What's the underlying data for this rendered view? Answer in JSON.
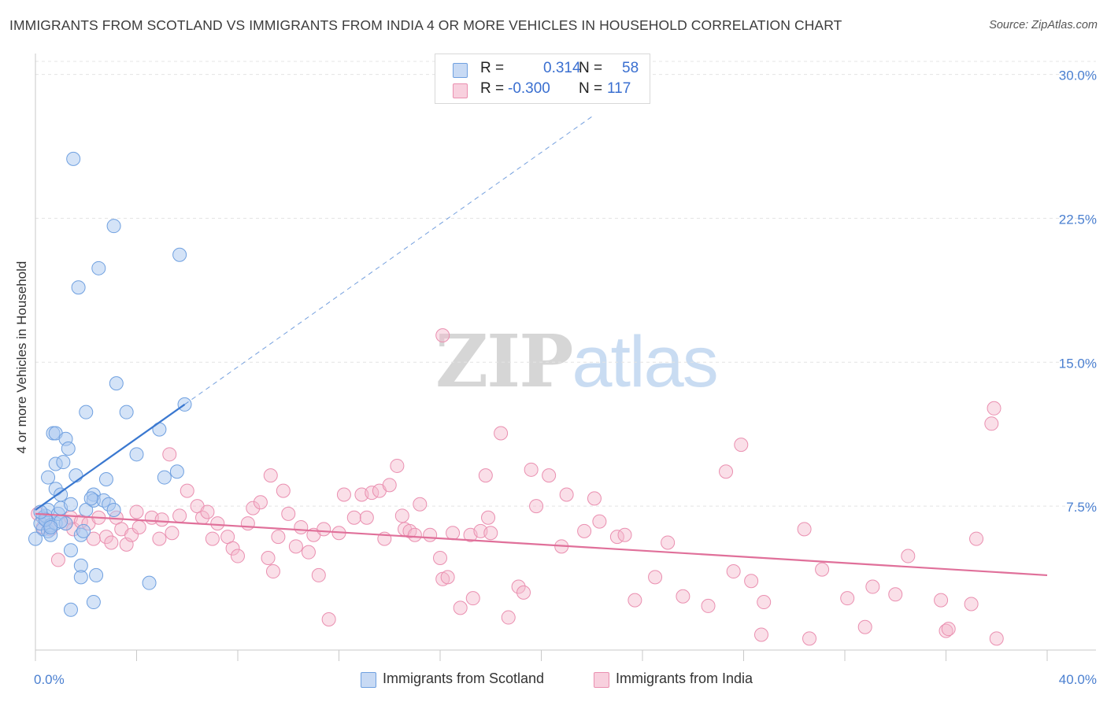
{
  "title": "IMMIGRANTS FROM SCOTLAND VS IMMIGRANTS FROM INDIA 4 OR MORE VEHICLES IN HOUSEHOLD CORRELATION CHART",
  "source": "Source: ZipAtlas.com",
  "watermark": {
    "zip": "ZIP",
    "atlas": "atlas"
  },
  "legend": {
    "rows": [
      {
        "r_label": "R =",
        "r_value": "0.314",
        "n_label": "N =",
        "n_value": "58",
        "color": "#aac8f0"
      },
      {
        "r_label": "R =",
        "r_value": "-0.300",
        "n_label": "N =",
        "n_value": "117",
        "color": "#f4b8cc"
      }
    ]
  },
  "bottom_legend": [
    {
      "label": "Immigrants from Scotland",
      "color": "#aac8f0"
    },
    {
      "label": "Immigrants from India",
      "color": "#f4b8cc"
    }
  ],
  "chart_data": {
    "type": "scatter",
    "ylabel": "4 or more Vehicles in Household",
    "xlabel": "",
    "xlim": [
      0,
      40
    ],
    "ylim": [
      0,
      31.5
    ],
    "x_tick_labels": [
      "0.0%",
      "40.0%"
    ],
    "y_ticks": [
      7.5,
      15.0,
      22.5,
      30.0
    ],
    "y_tick_labels": [
      "7.5%",
      "15.0%",
      "22.5%",
      "30.0%"
    ],
    "grid": true,
    "colors": {
      "scotland_fill": "#aac8f0",
      "scotland_stroke": "#6fa0e0",
      "scotland_line": "#3a78d0",
      "india_fill": "#f4b8cc",
      "india_stroke": "#ea8fb0",
      "india_line": "#e0709a"
    },
    "series": [
      {
        "name": "Immigrants from Scotland",
        "trend": {
          "x": [
            0,
            5.9
          ],
          "y": [
            7.3,
            12.8
          ],
          "dashed_extension_to": [
            22.0,
            27.8
          ]
        },
        "points": [
          [
            0.3,
            6.3
          ],
          [
            0.3,
            6.9
          ],
          [
            0.2,
            6.6
          ],
          [
            0.4,
            7.0
          ],
          [
            0.5,
            6.2
          ],
          [
            0.6,
            6.5
          ],
          [
            0.5,
            7.3
          ],
          [
            0.6,
            6.0
          ],
          [
            0.8,
            6.6
          ],
          [
            0.9,
            7.1
          ],
          [
            0.5,
            9.0
          ],
          [
            0.8,
            8.4
          ],
          [
            0.8,
            9.7
          ],
          [
            0.7,
            11.3
          ],
          [
            0.8,
            11.3
          ],
          [
            1.0,
            8.1
          ],
          [
            1.0,
            7.4
          ],
          [
            1.1,
            9.8
          ],
          [
            1.2,
            11.0
          ],
          [
            1.3,
            10.5
          ],
          [
            1.4,
            7.6
          ],
          [
            1.2,
            6.6
          ],
          [
            1.4,
            5.2
          ],
          [
            1.6,
            9.1
          ],
          [
            1.5,
            25.6
          ],
          [
            1.7,
            18.9
          ],
          [
            1.8,
            6.0
          ],
          [
            1.9,
            6.2
          ],
          [
            1.8,
            4.4
          ],
          [
            1.8,
            3.8
          ],
          [
            2.0,
            12.4
          ],
          [
            2.0,
            7.3
          ],
          [
            2.3,
            8.1
          ],
          [
            2.3,
            7.8
          ],
          [
            2.4,
            3.9
          ],
          [
            2.5,
            19.9
          ],
          [
            2.8,
            8.9
          ],
          [
            2.7,
            7.8
          ],
          [
            2.9,
            7.6
          ],
          [
            3.1,
            7.3
          ],
          [
            3.1,
            22.1
          ],
          [
            3.2,
            13.9
          ],
          [
            3.6,
            12.4
          ],
          [
            4.0,
            10.2
          ],
          [
            4.5,
            3.5
          ],
          [
            4.9,
            11.5
          ],
          [
            5.1,
            9.0
          ],
          [
            5.6,
            9.3
          ],
          [
            5.7,
            20.6
          ],
          [
            5.9,
            12.8
          ],
          [
            2.3,
            2.5
          ],
          [
            1.4,
            2.1
          ],
          [
            0.0,
            5.8
          ],
          [
            0.4,
            6.8
          ],
          [
            0.2,
            7.2
          ],
          [
            1.0,
            6.7
          ],
          [
            2.2,
            7.9
          ],
          [
            0.6,
            6.4
          ]
        ]
      },
      {
        "name": "Immigrants from India",
        "trend": {
          "x": [
            0,
            40
          ],
          "y": [
            7.1,
            3.9
          ]
        },
        "points": [
          [
            0.1,
            7.1
          ],
          [
            0.3,
            6.4
          ],
          [
            0.4,
            6.8
          ],
          [
            0.6,
            6.3
          ],
          [
            0.9,
            4.7
          ],
          [
            1.2,
            6.6
          ],
          [
            1.4,
            6.9
          ],
          [
            1.5,
            6.3
          ],
          [
            1.8,
            6.7
          ],
          [
            2.1,
            6.6
          ],
          [
            2.3,
            5.8
          ],
          [
            2.5,
            6.9
          ],
          [
            2.8,
            5.9
          ],
          [
            3.0,
            5.6
          ],
          [
            3.2,
            6.9
          ],
          [
            3.4,
            6.3
          ],
          [
            3.6,
            5.5
          ],
          [
            3.8,
            6.0
          ],
          [
            4.0,
            7.2
          ],
          [
            4.1,
            6.4
          ],
          [
            4.6,
            6.9
          ],
          [
            4.9,
            5.8
          ],
          [
            5.0,
            6.8
          ],
          [
            5.3,
            10.2
          ],
          [
            5.4,
            6.1
          ],
          [
            5.7,
            7.0
          ],
          [
            6.0,
            8.3
          ],
          [
            6.4,
            7.5
          ],
          [
            6.6,
            6.9
          ],
          [
            6.8,
            7.2
          ],
          [
            7.0,
            5.8
          ],
          [
            7.2,
            6.6
          ],
          [
            7.6,
            5.9
          ],
          [
            7.8,
            5.3
          ],
          [
            8.0,
            4.9
          ],
          [
            8.4,
            6.6
          ],
          [
            8.6,
            7.4
          ],
          [
            8.9,
            7.7
          ],
          [
            9.2,
            4.8
          ],
          [
            9.3,
            9.1
          ],
          [
            9.4,
            4.1
          ],
          [
            9.6,
            5.9
          ],
          [
            9.8,
            8.3
          ],
          [
            10.0,
            7.1
          ],
          [
            10.3,
            5.4
          ],
          [
            10.5,
            6.4
          ],
          [
            10.8,
            5.1
          ],
          [
            11.0,
            6.0
          ],
          [
            11.2,
            3.9
          ],
          [
            11.4,
            6.3
          ],
          [
            11.6,
            1.6
          ],
          [
            12.0,
            6.1
          ],
          [
            12.2,
            8.1
          ],
          [
            12.6,
            6.9
          ],
          [
            12.9,
            8.1
          ],
          [
            13.1,
            6.9
          ],
          [
            13.3,
            8.2
          ],
          [
            13.6,
            8.3
          ],
          [
            13.8,
            5.8
          ],
          [
            14.0,
            8.6
          ],
          [
            14.3,
            9.6
          ],
          [
            14.5,
            7.0
          ],
          [
            14.6,
            6.3
          ],
          [
            14.8,
            6.2
          ],
          [
            15.0,
            6.0
          ],
          [
            15.2,
            7.6
          ],
          [
            15.6,
            6.0
          ],
          [
            16.0,
            4.8
          ],
          [
            16.1,
            3.7
          ],
          [
            16.3,
            3.8
          ],
          [
            16.5,
            6.1
          ],
          [
            16.8,
            2.2
          ],
          [
            17.2,
            6.0
          ],
          [
            17.3,
            2.7
          ],
          [
            17.6,
            6.2
          ],
          [
            17.8,
            9.1
          ],
          [
            17.9,
            6.9
          ],
          [
            18.0,
            6.1
          ],
          [
            18.4,
            11.3
          ],
          [
            18.7,
            1.7
          ],
          [
            19.1,
            3.3
          ],
          [
            19.3,
            3.0
          ],
          [
            19.6,
            9.4
          ],
          [
            19.8,
            7.5
          ],
          [
            20.3,
            9.1
          ],
          [
            20.8,
            5.4
          ],
          [
            21.0,
            8.1
          ],
          [
            21.7,
            6.2
          ],
          [
            22.1,
            7.9
          ],
          [
            22.3,
            6.7
          ],
          [
            23.0,
            5.9
          ],
          [
            23.3,
            6.0
          ],
          [
            23.7,
            2.6
          ],
          [
            24.5,
            3.8
          ],
          [
            25.0,
            5.6
          ],
          [
            25.6,
            2.8
          ],
          [
            26.6,
            2.3
          ],
          [
            27.3,
            9.3
          ],
          [
            27.6,
            4.1
          ],
          [
            27.9,
            10.7
          ],
          [
            28.3,
            3.6
          ],
          [
            28.7,
            0.8
          ],
          [
            28.8,
            2.5
          ],
          [
            30.4,
            6.3
          ],
          [
            30.6,
            0.6
          ],
          [
            31.1,
            4.2
          ],
          [
            32.1,
            2.7
          ],
          [
            32.8,
            1.2
          ],
          [
            33.1,
            3.3
          ],
          [
            34.0,
            2.9
          ],
          [
            34.5,
            4.9
          ],
          [
            35.8,
            2.6
          ],
          [
            36.0,
            1.0
          ],
          [
            36.1,
            1.1
          ],
          [
            37.0,
            2.4
          ],
          [
            37.2,
            5.8
          ],
          [
            37.8,
            11.8
          ],
          [
            37.9,
            12.6
          ],
          [
            38.0,
            0.6
          ],
          [
            16.1,
            16.4
          ]
        ]
      }
    ]
  }
}
